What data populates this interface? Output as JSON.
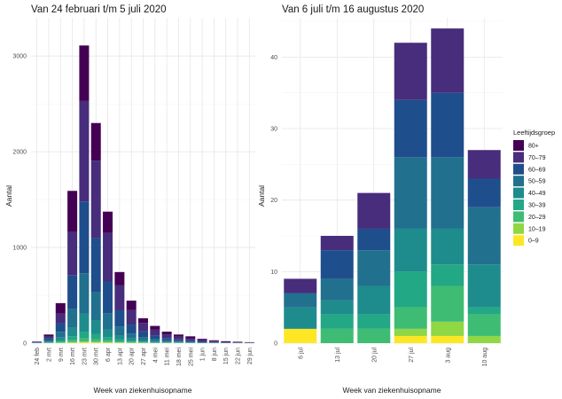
{
  "chart_data": [
    {
      "type": "bar",
      "stacked": true,
      "title": "Van 24 februari t/m 5 juli 2020",
      "xlabel": "Week van ziekenhuisopname",
      "ylabel": "Aantal",
      "ylim": [
        0,
        3400
      ],
      "yticks": [
        0,
        1000,
        2000,
        3000
      ],
      "grid": true,
      "categories": [
        "24 feb",
        "2 mrt",
        "9 mrt",
        "16 mrt",
        "23 mrt",
        "30 mrt",
        "6 apr",
        "13 apr",
        "20 apr",
        "27 apr",
        "4 mei",
        "11 mei",
        "18 mei",
        "25 mei",
        "1 jun",
        "8 jun",
        "15 jun",
        "22 jun",
        "29 jun"
      ],
      "series": [
        {
          "name": "0–9",
          "values": [
            0,
            1,
            2,
            4,
            6,
            5,
            4,
            3,
            2,
            2,
            1,
            1,
            1,
            0,
            0,
            0,
            0,
            0,
            0
          ]
        },
        {
          "name": "10–19",
          "values": [
            0,
            1,
            3,
            7,
            12,
            10,
            7,
            4,
            3,
            2,
            1,
            1,
            1,
            0,
            0,
            0,
            0,
            0,
            0
          ]
        },
        {
          "name": "20–29",
          "values": [
            1,
            3,
            8,
            20,
            32,
            27,
            18,
            11,
            7,
            5,
            3,
            2,
            1,
            1,
            1,
            0,
            0,
            0,
            0
          ]
        },
        {
          "name": "30–39",
          "values": [
            1,
            4,
            15,
            40,
            70,
            55,
            35,
            20,
            12,
            8,
            5,
            4,
            3,
            2,
            1,
            1,
            1,
            0,
            0
          ]
        },
        {
          "name": "40–49",
          "values": [
            2,
            8,
            30,
            90,
            190,
            140,
            80,
            45,
            25,
            15,
            10,
            7,
            5,
            4,
            2,
            2,
            1,
            1,
            1
          ]
        },
        {
          "name": "50–59",
          "values": [
            3,
            15,
            60,
            200,
            420,
            300,
            170,
            90,
            50,
            30,
            20,
            14,
            10,
            8,
            5,
            3,
            2,
            2,
            1
          ]
        },
        {
          "name": "60–69",
          "values": [
            4,
            20,
            90,
            350,
            750,
            560,
            330,
            170,
            95,
            60,
            40,
            25,
            18,
            14,
            9,
            6,
            4,
            3,
            2
          ]
        },
        {
          "name": "70–79",
          "values": [
            4,
            22,
            100,
            450,
            1050,
            810,
            510,
            260,
            150,
            90,
            60,
            38,
            28,
            22,
            13,
            9,
            6,
            4,
            3
          ]
        },
        {
          "name": "80+",
          "values": [
            3,
            16,
            110,
            430,
            580,
            393,
            220,
            140,
            100,
            48,
            40,
            28,
            23,
            20,
            14,
            9,
            6,
            5,
            3
          ]
        }
      ]
    },
    {
      "type": "bar",
      "stacked": true,
      "title": "Van 6 juli t/m 16 augustus 2020",
      "xlabel": "Week van ziekenhuisopname",
      "ylabel": "Aantal",
      "ylim": [
        0,
        45.5
      ],
      "yticks": [
        0,
        10,
        20,
        30,
        40
      ],
      "grid": true,
      "categories": [
        "6 jul",
        "13 jul",
        "20 jul",
        "27 jul",
        "3 aug",
        "10 aug"
      ],
      "series": [
        {
          "name": "0–9",
          "values": [
            2,
            0,
            0,
            1,
            1,
            0
          ]
        },
        {
          "name": "10–19",
          "values": [
            0,
            0,
            0,
            1,
            2,
            1
          ]
        },
        {
          "name": "20–29",
          "values": [
            0,
            2,
            2,
            3,
            5,
            3
          ]
        },
        {
          "name": "30–39",
          "values": [
            0,
            2,
            2,
            5,
            3,
            1
          ]
        },
        {
          "name": "40–49",
          "values": [
            3,
            2,
            4,
            6,
            5,
            6
          ]
        },
        {
          "name": "50–59",
          "values": [
            2,
            3,
            5,
            10,
            10,
            8
          ]
        },
        {
          "name": "60–69",
          "values": [
            0,
            4,
            3,
            8,
            9,
            4
          ]
        },
        {
          "name": "70–79",
          "values": [
            2,
            2,
            5,
            8,
            9,
            4
          ]
        },
        {
          "name": "80+",
          "values": [
            0,
            0,
            0,
            0,
            0,
            0
          ]
        }
      ]
    }
  ],
  "legend": {
    "title": "Leeftijdsgroep",
    "placement": "right",
    "items": [
      {
        "label": "80+",
        "color": "#440154"
      },
      {
        "label": "70–79",
        "color": "#472d7b"
      },
      {
        "label": "60–69",
        "color": "#1f4e8c"
      },
      {
        "label": "50–59",
        "color": "#21708e"
      },
      {
        "label": "40–49",
        "color": "#1e8c8c"
      },
      {
        "label": "30–39",
        "color": "#22a884"
      },
      {
        "label": "20–29",
        "color": "#3fbc73"
      },
      {
        "label": "10–19",
        "color": "#8fd744"
      },
      {
        "label": "0–9",
        "color": "#fde725"
      }
    ]
  }
}
